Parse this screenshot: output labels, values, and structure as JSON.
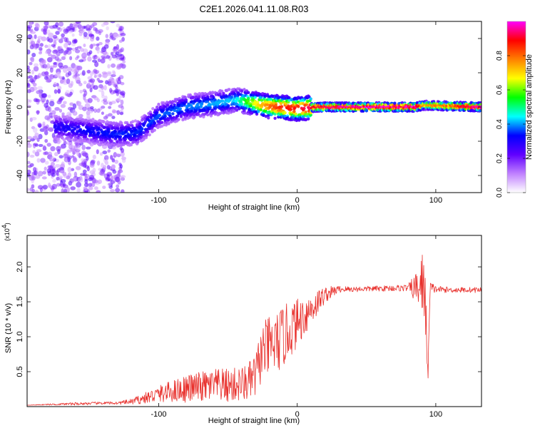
{
  "chart_data": [
    {
      "type": "heatmap",
      "title": "C2E1.2026.041.11.08.R03",
      "xlabel": "Height of straight line (km)",
      "ylabel": "Frequency (Hz)",
      "xlim": [
        -195,
        133
      ],
      "ylim": [
        -50,
        50
      ],
      "xticks": [
        -100,
        0,
        100
      ],
      "yticks": [
        -40,
        -20,
        0,
        20,
        40
      ],
      "colorbar": {
        "label": "Normalized spectral amplitude",
        "range": [
          0,
          1
        ],
        "ticks": [
          "0.0",
          "0.2",
          "0.4",
          "0.6",
          "0.8"
        ],
        "tick_values": [
          0.0,
          0.2,
          0.4,
          0.6,
          0.8
        ],
        "stops": [
          "#ffffff",
          "#c080ff",
          "#6000ff",
          "#0000ff",
          "#00ffff",
          "#00ff00",
          "#ffff00",
          "#ff8000",
          "#ff0000",
          "#ff00ff"
        ]
      },
      "ridge": {
        "x": [
          -170,
          -150,
          -130,
          -115,
          -100,
          -80,
          -60,
          -45,
          -35,
          -25,
          -15,
          0,
          15,
          50,
          85,
          92,
          133
        ],
        "freq": [
          -12,
          -14,
          -16,
          -15,
          -5,
          0,
          2,
          4,
          3,
          1,
          0,
          -1,
          0,
          0,
          0,
          1,
          0
        ],
        "amplitude": [
          0.25,
          0.28,
          0.3,
          0.3,
          0.32,
          0.34,
          0.36,
          0.38,
          0.55,
          0.7,
          0.8,
          0.85,
          0.9,
          0.95,
          0.95,
          0.7,
          0.95
        ]
      }
    },
    {
      "type": "line",
      "xlabel": "Height of straight line (km)",
      "ylabel": "SNR (10 * v/v)",
      "y_multiplier_label": "(x10",
      "y_multiplier_exp": "4",
      "y_multiplier_close": ")",
      "xlim": [
        -195,
        133
      ],
      "ylim": [
        0,
        2.45
      ],
      "xticks": [
        -100,
        0,
        100
      ],
      "yticks": [
        0.5,
        1.0,
        1.5,
        2.0
      ],
      "ytick_labels": [
        "0.5",
        "1.0",
        "1.5",
        "2.0"
      ],
      "line_color": "#e8302c",
      "series": [
        {
          "name": "SNR",
          "x": [
            -195,
            -180,
            -160,
            -140,
            -130,
            -120,
            -110,
            -100,
            -90,
            -80,
            -70,
            -60,
            -50,
            -40,
            -35,
            -30,
            -25,
            -20,
            -15,
            -10,
            -5,
            0,
            10,
            20,
            30,
            40,
            60,
            80,
            88,
            92,
            94,
            96,
            100,
            110,
            120,
            133
          ],
          "y": [
            0.02,
            0.03,
            0.04,
            0.05,
            0.05,
            0.07,
            0.12,
            0.18,
            0.22,
            0.26,
            0.28,
            0.3,
            0.3,
            0.32,
            0.35,
            0.45,
            0.8,
            0.85,
            0.9,
            1.0,
            1.1,
            1.2,
            1.4,
            1.6,
            1.68,
            1.68,
            1.69,
            1.7,
            1.7,
            1.8,
            0.35,
            1.7,
            1.68,
            1.67,
            1.67,
            1.67
          ],
          "noise": [
            0.0,
            0.01,
            0.02,
            0.02,
            0.02,
            0.04,
            0.08,
            0.12,
            0.16,
            0.2,
            0.22,
            0.24,
            0.25,
            0.26,
            0.28,
            0.35,
            0.4,
            0.45,
            0.45,
            0.45,
            0.4,
            0.35,
            0.25,
            0.12,
            0.05,
            0.04,
            0.04,
            0.05,
            0.3,
            0.6,
            0.3,
            0.1,
            0.05,
            0.04,
            0.04,
            0.04
          ]
        }
      ]
    }
  ]
}
